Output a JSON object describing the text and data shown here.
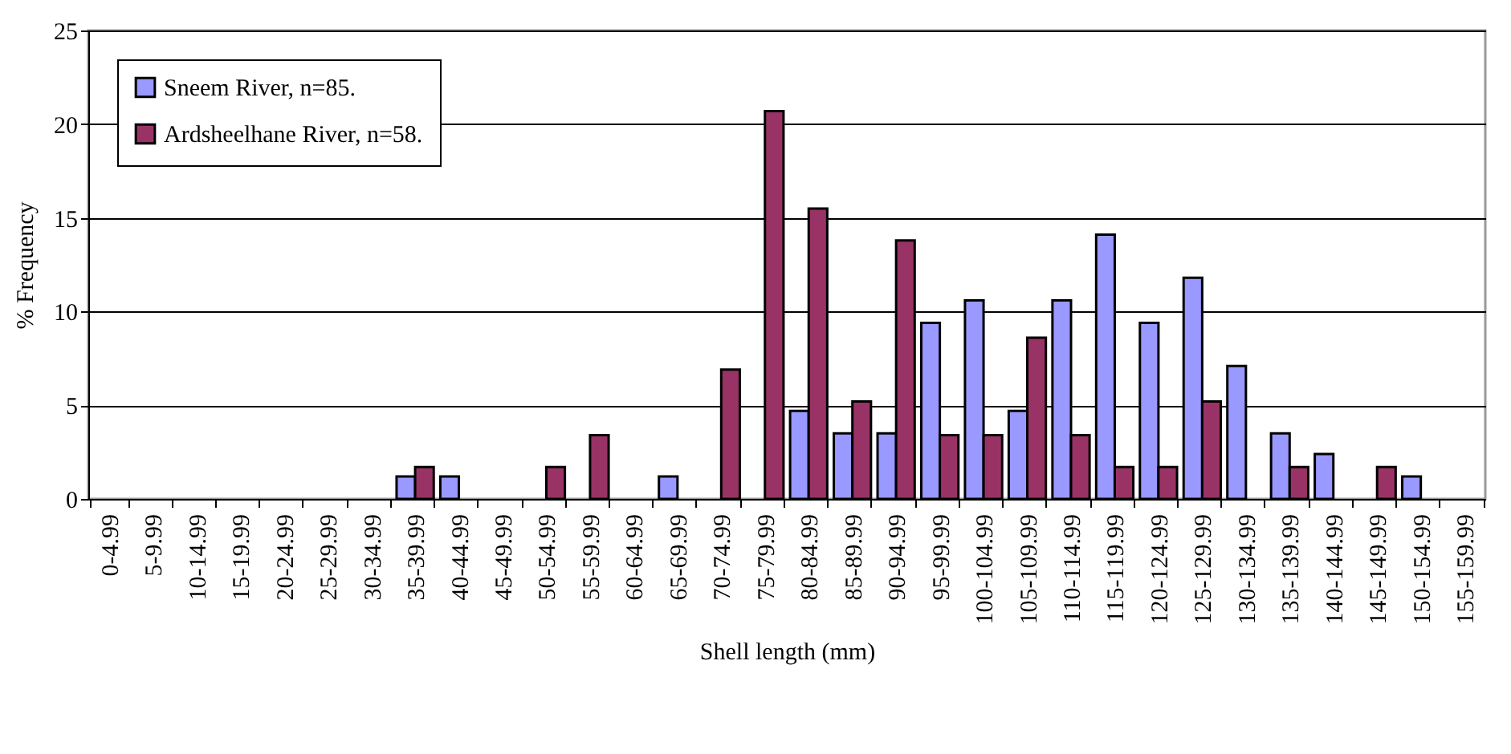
{
  "chart_data": {
    "type": "bar",
    "xlabel": "Shell length (mm)",
    "ylabel": "% Frequency",
    "categories": [
      "0-4.99",
      "5-9.99",
      "10-14.99",
      "15-19.99",
      "20-24.99",
      "25-29.99",
      "30-34.99",
      "35-39.99",
      "40-44.99",
      "45-49.99",
      "50-54.99",
      "55-59.99",
      "60-64.99",
      "65-69.99",
      "70-74.99",
      "75-79.99",
      "80-84.99",
      "85-89.99",
      "90-94.99",
      "95-99.99",
      "100-104.99",
      "105-109.99",
      "110-114.99",
      "115-119.99",
      "120-124.99",
      "125-129.99",
      "130-134.99",
      "135-139.99",
      "140-144.99",
      "145-149.99",
      "150-154.99",
      "155-159.99"
    ],
    "series": [
      {
        "name": "Sneem River, n=85.",
        "color": "#9999ff",
        "values": [
          null,
          null,
          null,
          null,
          null,
          null,
          null,
          1.2,
          1.2,
          null,
          null,
          null,
          null,
          1.2,
          null,
          null,
          4.7,
          3.5,
          3.5,
          9.4,
          10.6,
          4.7,
          10.6,
          14.1,
          9.4,
          11.8,
          7.1,
          3.5,
          2.4,
          null,
          1.2,
          null
        ]
      },
      {
        "name": "Ardsheelhane River, n=58.",
        "color": "#993366",
        "values": [
          null,
          null,
          null,
          null,
          null,
          null,
          null,
          1.7,
          null,
          null,
          1.7,
          3.4,
          null,
          null,
          6.9,
          20.7,
          15.5,
          5.2,
          13.8,
          3.4,
          3.4,
          8.6,
          3.4,
          1.7,
          1.7,
          5.2,
          null,
          1.7,
          null,
          1.7,
          null,
          null
        ]
      }
    ],
    "ylim": [
      0,
      25
    ],
    "yticks": [
      0,
      5,
      10,
      15,
      20,
      25
    ],
    "grid": "y",
    "legend": "top left"
  }
}
